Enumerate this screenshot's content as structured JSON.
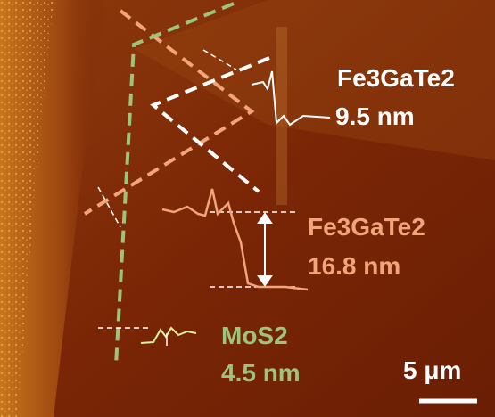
{
  "annotations": [
    {
      "label": "Fe3GaTe2",
      "height": "9.5 nm"
    },
    {
      "label": "Fe3GaTe2",
      "height": "16.8 nm"
    },
    {
      "label": "MoS2",
      "height": "4.5 nm"
    }
  ],
  "scale_bar": "5 μm"
}
